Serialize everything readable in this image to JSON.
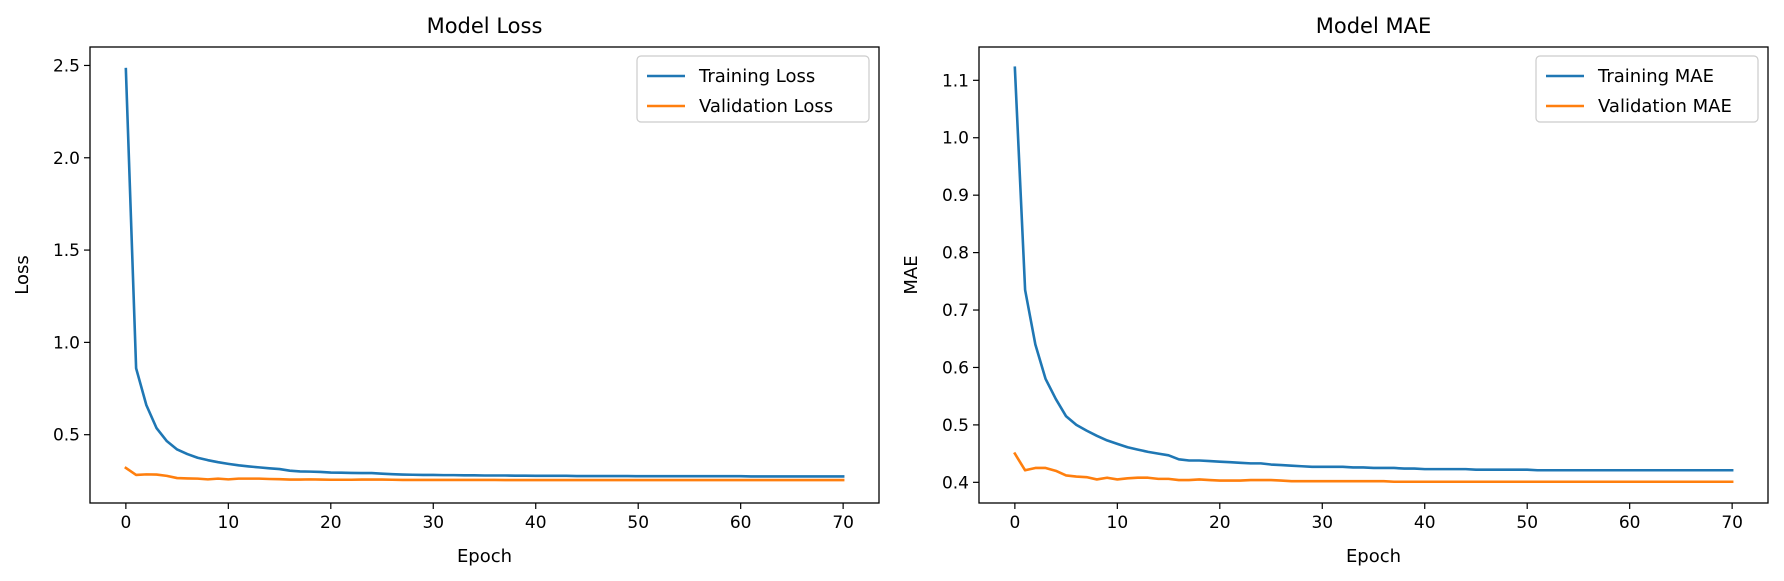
{
  "chart_data": [
    {
      "type": "line",
      "title": "Model Loss",
      "xlabel": "Epoch",
      "ylabel": "Loss",
      "xlim": [
        -3.5,
        73.5
      ],
      "ylim": [
        0.13,
        2.6
      ],
      "xticks": [
        0,
        10,
        20,
        30,
        40,
        50,
        60,
        70
      ],
      "yticks": [
        0.5,
        1.0,
        1.5,
        2.0,
        2.5
      ],
      "ytick_labels": [
        "0.5",
        "1.0",
        "1.5",
        "2.0",
        "2.5"
      ],
      "grid": false,
      "legend_position": "top-right",
      "x": [
        0,
        1,
        2,
        3,
        4,
        5,
        6,
        7,
        8,
        9,
        10,
        11,
        12,
        13,
        14,
        15,
        16,
        17,
        18,
        19,
        20,
        21,
        22,
        23,
        24,
        25,
        26,
        27,
        28,
        29,
        30,
        31,
        32,
        33,
        34,
        35,
        36,
        37,
        38,
        39,
        40,
        41,
        42,
        43,
        44,
        45,
        46,
        47,
        48,
        49,
        50,
        51,
        52,
        53,
        54,
        55,
        56,
        57,
        58,
        59,
        60,
        61,
        62,
        63,
        64,
        65,
        66,
        67,
        68,
        69,
        70
      ],
      "series": [
        {
          "name": "Training Loss",
          "color": "#1f77b4",
          "values": [
            2.48,
            0.86,
            0.66,
            0.535,
            0.465,
            0.42,
            0.395,
            0.375,
            0.362,
            0.351,
            0.342,
            0.334,
            0.328,
            0.323,
            0.318,
            0.314,
            0.305,
            0.301,
            0.3,
            0.298,
            0.295,
            0.294,
            0.293,
            0.292,
            0.292,
            0.289,
            0.286,
            0.284,
            0.283,
            0.282,
            0.282,
            0.281,
            0.281,
            0.28,
            0.28,
            0.279,
            0.279,
            0.279,
            0.278,
            0.278,
            0.277,
            0.277,
            0.277,
            0.277,
            0.276,
            0.276,
            0.276,
            0.276,
            0.276,
            0.276,
            0.275,
            0.275,
            0.275,
            0.275,
            0.275,
            0.275,
            0.275,
            0.275,
            0.275,
            0.275,
            0.275,
            0.274,
            0.274,
            0.274,
            0.274,
            0.274,
            0.274,
            0.274,
            0.274,
            0.274,
            0.274
          ]
        },
        {
          "name": "Validation Loss",
          "color": "#ff7f0e",
          "values": [
            0.32,
            0.282,
            0.285,
            0.284,
            0.277,
            0.265,
            0.263,
            0.262,
            0.258,
            0.262,
            0.258,
            0.262,
            0.262,
            0.262,
            0.26,
            0.259,
            0.257,
            0.257,
            0.258,
            0.257,
            0.256,
            0.256,
            0.256,
            0.257,
            0.257,
            0.257,
            0.256,
            0.255,
            0.255,
            0.255,
            0.255,
            0.255,
            0.255,
            0.255,
            0.255,
            0.255,
            0.255,
            0.254,
            0.254,
            0.254,
            0.254,
            0.254,
            0.254,
            0.254,
            0.254,
            0.254,
            0.254,
            0.254,
            0.254,
            0.254,
            0.254,
            0.254,
            0.254,
            0.254,
            0.254,
            0.254,
            0.254,
            0.254,
            0.254,
            0.254,
            0.254,
            0.254,
            0.254,
            0.254,
            0.254,
            0.254,
            0.254,
            0.254,
            0.254,
            0.254,
            0.254
          ]
        }
      ]
    },
    {
      "type": "line",
      "title": "Model MAE",
      "xlabel": "Epoch",
      "ylabel": "MAE",
      "xlim": [
        -3.5,
        73.5
      ],
      "ylim": [
        0.364,
        1.158
      ],
      "xticks": [
        0,
        10,
        20,
        30,
        40,
        50,
        60,
        70
      ],
      "yticks": [
        0.4,
        0.5,
        0.6,
        0.7,
        0.8,
        0.9,
        1.0,
        1.1
      ],
      "ytick_labels": [
        "0.4",
        "0.5",
        "0.6",
        "0.7",
        "0.8",
        "0.9",
        "1.0",
        "1.1"
      ],
      "grid": false,
      "legend_position": "top-right",
      "x": [
        0,
        1,
        2,
        3,
        4,
        5,
        6,
        7,
        8,
        9,
        10,
        11,
        12,
        13,
        14,
        15,
        16,
        17,
        18,
        19,
        20,
        21,
        22,
        23,
        24,
        25,
        26,
        27,
        28,
        29,
        30,
        31,
        32,
        33,
        34,
        35,
        36,
        37,
        38,
        39,
        40,
        41,
        42,
        43,
        44,
        45,
        46,
        47,
        48,
        49,
        50,
        51,
        52,
        53,
        54,
        55,
        56,
        57,
        58,
        59,
        60,
        61,
        62,
        63,
        64,
        65,
        66,
        67,
        68,
        69,
        70
      ],
      "series": [
        {
          "name": "Training MAE",
          "color": "#1f77b4",
          "values": [
            1.122,
            0.735,
            0.64,
            0.58,
            0.545,
            0.515,
            0.5,
            0.49,
            0.481,
            0.473,
            0.467,
            0.461,
            0.457,
            0.453,
            0.45,
            0.447,
            0.44,
            0.438,
            0.438,
            0.437,
            0.436,
            0.435,
            0.434,
            0.433,
            0.433,
            0.431,
            0.43,
            0.429,
            0.428,
            0.427,
            0.427,
            0.427,
            0.427,
            0.426,
            0.426,
            0.425,
            0.425,
            0.425,
            0.424,
            0.424,
            0.423,
            0.423,
            0.423,
            0.423,
            0.423,
            0.422,
            0.422,
            0.422,
            0.422,
            0.422,
            0.422,
            0.421,
            0.421,
            0.421,
            0.421,
            0.421,
            0.421,
            0.421,
            0.421,
            0.421,
            0.421,
            0.421,
            0.421,
            0.421,
            0.421,
            0.421,
            0.421,
            0.421,
            0.421,
            0.421,
            0.421
          ]
        },
        {
          "name": "Validation MAE",
          "color": "#ff7f0e",
          "values": [
            0.45,
            0.421,
            0.425,
            0.425,
            0.42,
            0.412,
            0.41,
            0.409,
            0.405,
            0.408,
            0.405,
            0.407,
            0.408,
            0.408,
            0.406,
            0.406,
            0.404,
            0.404,
            0.405,
            0.404,
            0.403,
            0.403,
            0.403,
            0.404,
            0.404,
            0.404,
            0.403,
            0.402,
            0.402,
            0.402,
            0.402,
            0.402,
            0.402,
            0.402,
            0.402,
            0.402,
            0.402,
            0.401,
            0.401,
            0.401,
            0.401,
            0.401,
            0.401,
            0.401,
            0.401,
            0.401,
            0.401,
            0.401,
            0.401,
            0.401,
            0.401,
            0.401,
            0.401,
            0.401,
            0.401,
            0.401,
            0.401,
            0.401,
            0.401,
            0.401,
            0.401,
            0.401,
            0.401,
            0.401,
            0.401,
            0.401,
            0.401,
            0.401,
            0.401,
            0.401,
            0.401
          ]
        }
      ]
    }
  ]
}
